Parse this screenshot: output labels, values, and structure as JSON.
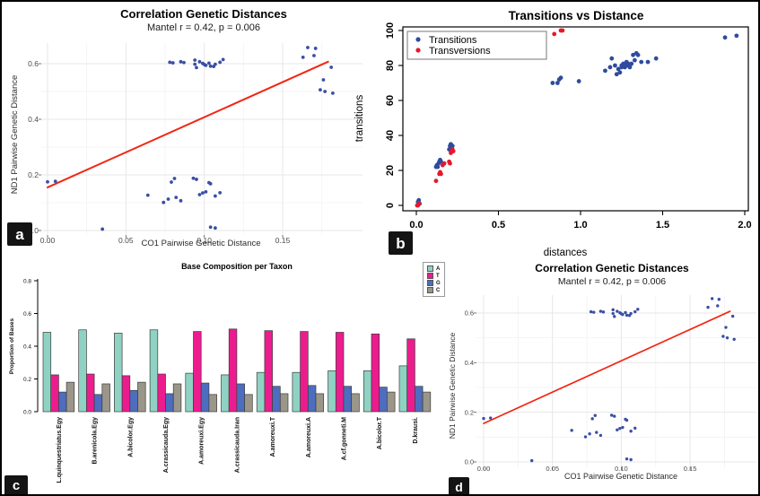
{
  "figure": {
    "background": "#ffffff",
    "border_color": "#000000",
    "grid_color": "#e7e7e7",
    "minor_grid_color": "#f2f2f2"
  },
  "panels": {
    "a": {
      "badge": "a",
      "title": "Correlation Genetic Distances",
      "subtitle": "Mantel r = 0.42, p = 0.006",
      "xlabel": "CO1 Pairwise Genetic Distance",
      "ylabel": "ND1 Pairwise Genetic Distance"
    },
    "b": {
      "badge": "b",
      "title": "Transitions vs Distance",
      "xlabel": "distances",
      "ylabel": "transitions",
      "legend": [
        "Transitions",
        "Transversions"
      ]
    },
    "c": {
      "badge": "c",
      "title": "Base Composition per Taxon",
      "ylabel": "Proportion of Bases",
      "legend": [
        "A",
        "T",
        "G",
        "C"
      ]
    },
    "d": {
      "badge": "d",
      "title": "Correlation Genetic Distances",
      "subtitle": "Mantel r = 0.42, p = 0.006",
      "xlabel": "CO1 Pairwise Genetic Distance",
      "ylabel": "ND1 Pairwise Genetic Distance"
    }
  },
  "chart_data": [
    {
      "panel": "a",
      "type": "scatter",
      "title": "Correlation Genetic Distances",
      "subtitle": "Mantel r = 0.42, p = 0.006",
      "xlabel": "CO1 Pairwise Genetic Distance",
      "ylabel": "ND1 Pairwise Genetic Distance",
      "xlim": [
        -0.004,
        0.1995
      ],
      "ylim": [
        -0.025,
        0.69
      ],
      "xticks": [
        0,
        0.05,
        0.1,
        0.15
      ],
      "xtick_labels": [
        "0.00",
        "0.05",
        "0.10",
        "0.15"
      ],
      "yticks": [
        0,
        0.2,
        0.4,
        0.6
      ],
      "ytick_labels": [
        "0.0",
        "0.2",
        "0.4",
        "0.6"
      ],
      "grid": true,
      "point_color": "#3a4fa3",
      "points": [
        [
          0.0,
          0.175
        ],
        [
          0.005,
          0.177
        ],
        [
          0.035,
          0.005
        ],
        [
          0.104,
          0.012
        ],
        [
          0.107,
          0.009
        ],
        [
          0.078,
          0.605
        ],
        [
          0.08,
          0.603
        ],
        [
          0.085,
          0.607
        ],
        [
          0.087,
          0.604
        ],
        [
          0.094,
          0.613
        ],
        [
          0.094,
          0.598
        ],
        [
          0.095,
          0.586
        ],
        [
          0.097,
          0.607
        ],
        [
          0.099,
          0.601
        ],
        [
          0.1,
          0.597
        ],
        [
          0.101,
          0.594
        ],
        [
          0.103,
          0.602
        ],
        [
          0.104,
          0.591
        ],
        [
          0.106,
          0.59
        ],
        [
          0.107,
          0.598
        ],
        [
          0.11,
          0.605
        ],
        [
          0.112,
          0.615
        ],
        [
          0.064,
          0.127
        ],
        [
          0.074,
          0.101
        ],
        [
          0.077,
          0.113
        ],
        [
          0.079,
          0.174
        ],
        [
          0.081,
          0.187
        ],
        [
          0.082,
          0.119
        ],
        [
          0.085,
          0.107
        ],
        [
          0.093,
          0.188
        ],
        [
          0.095,
          0.184
        ],
        [
          0.097,
          0.129
        ],
        [
          0.099,
          0.135
        ],
        [
          0.101,
          0.139
        ],
        [
          0.103,
          0.172
        ],
        [
          0.104,
          0.168
        ],
        [
          0.107,
          0.124
        ],
        [
          0.11,
          0.136
        ],
        [
          0.166,
          0.658
        ],
        [
          0.171,
          0.655
        ],
        [
          0.163,
          0.623
        ],
        [
          0.17,
          0.629
        ],
        [
          0.181,
          0.587
        ],
        [
          0.176,
          0.542
        ],
        [
          0.174,
          0.506
        ],
        [
          0.177,
          0.5
        ],
        [
          0.182,
          0.494
        ]
      ],
      "trend_line": {
        "x1": 0.0,
        "y1": 0.155,
        "x2": 0.179,
        "y2": 0.607,
        "color": "#f22613"
      }
    },
    {
      "panel": "b",
      "type": "scatter",
      "title": "Transitions vs Distance",
      "xlabel": "distances",
      "ylabel": "transitions",
      "xlim": [
        -0.05,
        2.05
      ],
      "ylim": [
        -3,
        103
      ],
      "xticks": [
        0,
        0.5,
        1.0,
        1.5,
        2.0
      ],
      "xtick_labels": [
        "0.0",
        "0.5",
        "1.0",
        "1.5",
        "2.0"
      ],
      "yticks": [
        0,
        20,
        40,
        60,
        80,
        100
      ],
      "ytick_labels": [
        "0",
        "20",
        "40",
        "60",
        "80",
        "100"
      ],
      "grid": false,
      "legend_position": "top-left",
      "series": [
        {
          "name": "Transitions",
          "color": "#2e4b9e",
          "points": [
            [
              0.01,
              2
            ],
            [
              0.015,
              3
            ],
            [
              0.02,
              1
            ],
            [
              0.12,
              22
            ],
            [
              0.125,
              23
            ],
            [
              0.13,
              22
            ],
            [
              0.135,
              24
            ],
            [
              0.14,
              25
            ],
            [
              0.145,
              26
            ],
            [
              0.15,
              25
            ],
            [
              0.2,
              32
            ],
            [
              0.205,
              34
            ],
            [
              0.21,
              35
            ],
            [
              0.215,
              33
            ],
            [
              0.22,
              34
            ],
            [
              0.21,
              33
            ],
            [
              0.83,
              70
            ],
            [
              0.86,
              70
            ],
            [
              0.87,
              72
            ],
            [
              0.88,
              73
            ],
            [
              0.99,
              71
            ],
            [
              1.15,
              77
            ],
            [
              1.18,
              79
            ],
            [
              1.19,
              84
            ],
            [
              1.21,
              80
            ],
            [
              1.22,
              75
            ],
            [
              1.23,
              78
            ],
            [
              1.24,
              76
            ],
            [
              1.25,
              79
            ],
            [
              1.25,
              80
            ],
            [
              1.26,
              81
            ],
            [
              1.27,
              79
            ],
            [
              1.28,
              80
            ],
            [
              1.28,
              82
            ],
            [
              1.29,
              81
            ],
            [
              1.3,
              79
            ],
            [
              1.3,
              80
            ],
            [
              1.31,
              81
            ],
            [
              1.32,
              86
            ],
            [
              1.33,
              83
            ],
            [
              1.34,
              87
            ],
            [
              1.35,
              86
            ],
            [
              1.37,
              82
            ],
            [
              1.41,
              82
            ],
            [
              1.46,
              84
            ],
            [
              1.88,
              96
            ],
            [
              1.95,
              97
            ]
          ]
        },
        {
          "name": "Transversions",
          "color": "#e31a2b",
          "points": [
            [
              0.005,
              0
            ],
            [
              0.01,
              0
            ],
            [
              0.015,
              1
            ],
            [
              0.12,
              14
            ],
            [
              0.14,
              18
            ],
            [
              0.145,
              19
            ],
            [
              0.15,
              18
            ],
            [
              0.16,
              23
            ],
            [
              0.17,
              24
            ],
            [
              0.2,
              25
            ],
            [
              0.205,
              24
            ],
            [
              0.21,
              30
            ],
            [
              0.215,
              31
            ],
            [
              0.22,
              32
            ],
            [
              0.225,
              31
            ],
            [
              0.84,
              98
            ],
            [
              0.88,
              100
            ],
            [
              0.89,
              100
            ]
          ]
        }
      ]
    },
    {
      "panel": "c",
      "type": "bar",
      "title": "Base Composition per Taxon",
      "ylabel": "Proportion of Bases",
      "ylim": [
        0,
        0.8
      ],
      "yticks": [
        0,
        0.2,
        0.4,
        0.6,
        0.8
      ],
      "ytick_labels": [
        "0.0",
        "0.2",
        "0.4",
        "0.6",
        "0.8"
      ],
      "categories": [
        "L.quinquestriatus.Egy",
        "B.arenicola.Egy",
        "A.bicolor.Egy",
        "A.crassicauda.Egy",
        "A.amoreuxi.Egy",
        "A.crassicauda.Iran",
        "A.amoreuxi.T",
        "A.amoreuxi.A",
        "A.cf.gonneti.M",
        "A.bicolor.T",
        "D.krausi."
      ],
      "series": [
        {
          "name": "A",
          "color": "#8fd2c3",
          "values": [
            0.485,
            0.5,
            0.48,
            0.5,
            0.235,
            0.225,
            0.24,
            0.24,
            0.25,
            0.25,
            0.28
          ]
        },
        {
          "name": "T",
          "color": "#ec1c8f",
          "values": [
            0.225,
            0.23,
            0.22,
            0.23,
            0.49,
            0.505,
            0.495,
            0.49,
            0.485,
            0.475,
            0.445
          ]
        },
        {
          "name": "G",
          "color": "#4d6dbe",
          "values": [
            0.12,
            0.105,
            0.13,
            0.11,
            0.175,
            0.17,
            0.155,
            0.16,
            0.155,
            0.15,
            0.155
          ]
        },
        {
          "name": "C",
          "color": "#9b968a",
          "values": [
            0.18,
            0.17,
            0.18,
            0.17,
            0.105,
            0.105,
            0.11,
            0.11,
            0.11,
            0.12,
            0.12
          ]
        }
      ],
      "legend_position": "right"
    },
    {
      "panel": "d",
      "type": "scatter",
      "title": "Correlation Genetic Distances",
      "subtitle": "Mantel r = 0.42, p = 0.006",
      "xlabel": "CO1 Pairwise Genetic Distance",
      "ylabel": "ND1 Pairwise Genetic Distance",
      "xlim": [
        -0.004,
        0.1995
      ],
      "ylim": [
        -0.025,
        0.69
      ],
      "xticks": [
        0,
        0.05,
        0.1,
        0.15
      ],
      "xtick_labels": [
        "0.00",
        "0.05",
        "0.10",
        "0.15"
      ],
      "yticks": [
        0,
        0.2,
        0.4,
        0.6
      ],
      "ytick_labels": [
        "0.0",
        "0.2",
        "0.4",
        "0.6"
      ],
      "grid": true,
      "point_color": "#3a4fa3",
      "points": [
        [
          0.0,
          0.175
        ],
        [
          0.005,
          0.177
        ],
        [
          0.035,
          0.005
        ],
        [
          0.104,
          0.012
        ],
        [
          0.107,
          0.009
        ],
        [
          0.078,
          0.605
        ],
        [
          0.08,
          0.603
        ],
        [
          0.085,
          0.607
        ],
        [
          0.087,
          0.604
        ],
        [
          0.094,
          0.613
        ],
        [
          0.094,
          0.598
        ],
        [
          0.095,
          0.586
        ],
        [
          0.097,
          0.607
        ],
        [
          0.099,
          0.601
        ],
        [
          0.1,
          0.597
        ],
        [
          0.101,
          0.594
        ],
        [
          0.103,
          0.602
        ],
        [
          0.104,
          0.591
        ],
        [
          0.106,
          0.59
        ],
        [
          0.107,
          0.598
        ],
        [
          0.11,
          0.605
        ],
        [
          0.112,
          0.615
        ],
        [
          0.064,
          0.127
        ],
        [
          0.074,
          0.101
        ],
        [
          0.077,
          0.113
        ],
        [
          0.079,
          0.174
        ],
        [
          0.081,
          0.187
        ],
        [
          0.082,
          0.119
        ],
        [
          0.085,
          0.107
        ],
        [
          0.093,
          0.188
        ],
        [
          0.095,
          0.184
        ],
        [
          0.097,
          0.129
        ],
        [
          0.099,
          0.135
        ],
        [
          0.101,
          0.139
        ],
        [
          0.103,
          0.172
        ],
        [
          0.104,
          0.168
        ],
        [
          0.107,
          0.124
        ],
        [
          0.11,
          0.136
        ],
        [
          0.166,
          0.658
        ],
        [
          0.171,
          0.655
        ],
        [
          0.163,
          0.623
        ],
        [
          0.17,
          0.629
        ],
        [
          0.181,
          0.587
        ],
        [
          0.176,
          0.542
        ],
        [
          0.174,
          0.506
        ],
        [
          0.177,
          0.5
        ],
        [
          0.182,
          0.494
        ]
      ],
      "trend_line": {
        "x1": 0.0,
        "y1": 0.155,
        "x2": 0.179,
        "y2": 0.607,
        "color": "#f22613"
      }
    }
  ]
}
